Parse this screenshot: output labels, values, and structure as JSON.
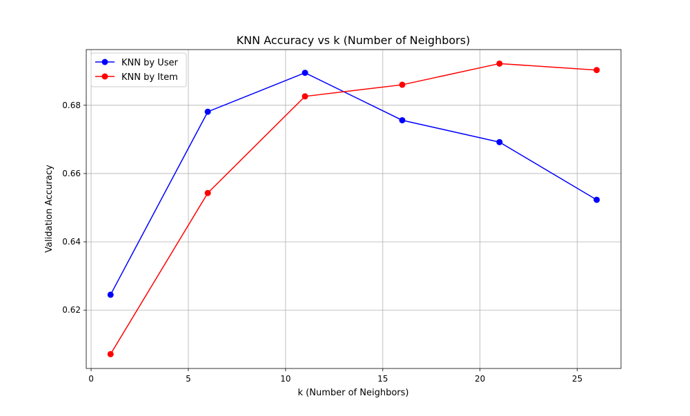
{
  "chart_data": {
    "type": "line",
    "title": "KNN Accuracy vs k (Number of Neighbors)",
    "xlabel": "k (Number of Neighbors)",
    "ylabel": "Validation Accuracy",
    "x": [
      1,
      6,
      11,
      16,
      21,
      26
    ],
    "series": [
      {
        "name": "KNN by User",
        "color": "#0000ff",
        "values": [
          0.6245,
          0.6781,
          0.6895,
          0.6756,
          0.6692,
          0.6523
        ]
      },
      {
        "name": "KNN by Item",
        "color": "#ff0000",
        "values": [
          0.6071,
          0.6543,
          0.6826,
          0.686,
          0.6922,
          0.6903
        ]
      }
    ],
    "xlim": [
      -0.25,
      27.25
    ],
    "ylim": [
      0.6029,
      0.6963
    ],
    "xticks": [
      0,
      5,
      10,
      15,
      20,
      25
    ],
    "xtick_labels": [
      "0",
      "5",
      "10",
      "15",
      "20",
      "25"
    ],
    "yticks": [
      0.62,
      0.64,
      0.66,
      0.68
    ],
    "ytick_labels": [
      "0.62",
      "0.64",
      "0.66",
      "0.68"
    ],
    "grid": true,
    "legend_position": "top-left"
  }
}
